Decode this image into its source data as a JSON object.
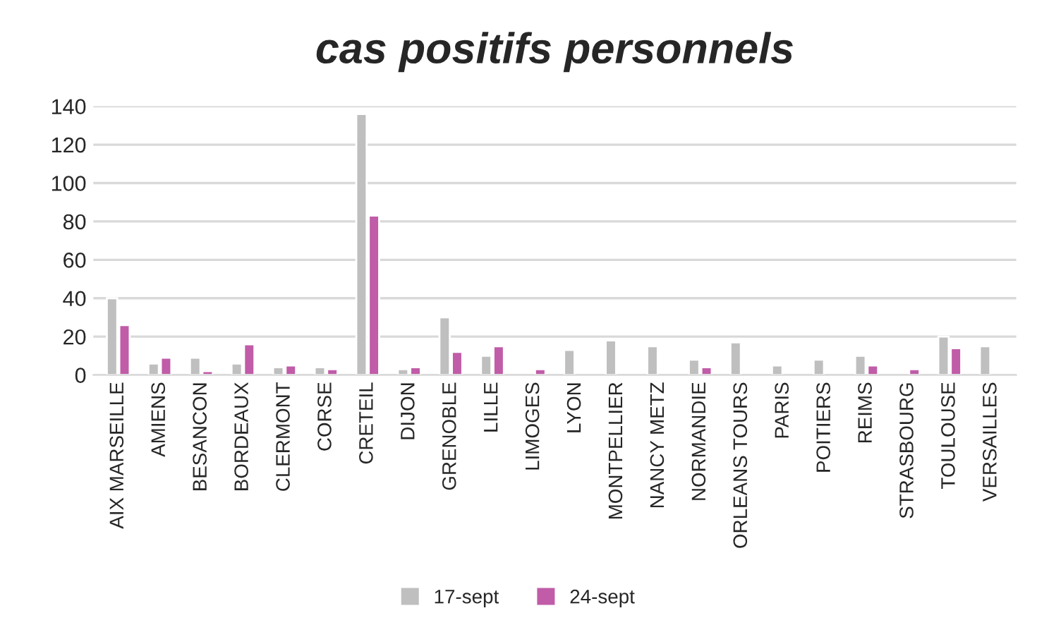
{
  "chart_data": {
    "type": "bar",
    "title": "cas positifs personnels",
    "categories": [
      "AIX MARSEILLE",
      "AMIENS",
      "BESANCON",
      "BORDEAUX",
      "CLERMONT",
      "CORSE",
      "CRETEIL",
      "DIJON",
      "GRENOBLE",
      "LILLE",
      "LIMOGES",
      "LYON",
      "MONTPELLIER",
      "NANCY METZ",
      "NORMANDIE",
      "ORLEANS TOURS",
      "PARIS",
      "POITIERS",
      "REIMS",
      "STRASBOURG",
      "TOULOUSE",
      "VERSAILLES"
    ],
    "series": [
      {
        "name": "17-sept",
        "color": "#bfbfbf",
        "values": [
          40,
          6,
          9,
          6,
          4,
          4,
          136,
          3,
          30,
          10,
          null,
          13,
          18,
          15,
          8,
          17,
          5,
          8,
          10,
          null,
          20,
          15
        ]
      },
      {
        "name": "24-sept",
        "color": "#c05ca8",
        "values": [
          26,
          9,
          2,
          16,
          5,
          3,
          83,
          4,
          12,
          15,
          3,
          null,
          null,
          null,
          4,
          null,
          null,
          null,
          5,
          3,
          14,
          null
        ]
      }
    ],
    "ylim": [
      0,
      140
    ],
    "yticks": [
      0,
      20,
      40,
      60,
      80,
      100,
      120,
      140
    ],
    "grid": "y",
    "legend": "bottom"
  }
}
